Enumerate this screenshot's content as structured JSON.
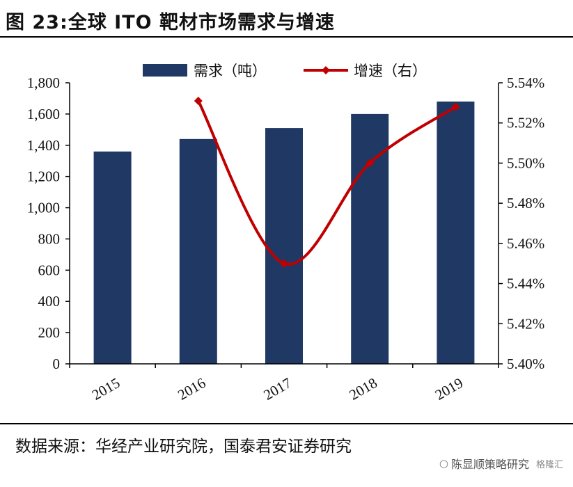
{
  "title": "图 23:全球 ITO 靶材市场需求与增速",
  "source": "数据来源：华经产业研究院，国泰君安证券研究",
  "watermark": {
    "text": "陈显顺策略研究",
    "brand": "格隆汇"
  },
  "chart_data": {
    "type": "bar",
    "categories": [
      "2015",
      "2016",
      "2017",
      "2018",
      "2019"
    ],
    "series": [
      {
        "name": "需求（吨）",
        "type": "bar",
        "axis": "left",
        "color": "#1f3864",
        "values": [
          1360,
          1440,
          1510,
          1600,
          1680
        ]
      },
      {
        "name": "增速（右）",
        "type": "line",
        "axis": "right",
        "color": "#c00000",
        "values": [
          null,
          5.531,
          5.45,
          5.5,
          5.528
        ]
      }
    ],
    "left_axis": {
      "ylim": [
        0,
        1800
      ],
      "ticks": [
        "0",
        "200",
        "400",
        "600",
        "800",
        "1,000",
        "1,200",
        "1,400",
        "1,600",
        "1,800"
      ]
    },
    "right_axis": {
      "ylim": [
        5.4,
        5.54
      ],
      "ticks": [
        "5.40%",
        "5.42%",
        "5.44%",
        "5.46%",
        "5.48%",
        "5.50%",
        "5.52%",
        "5.54%"
      ]
    },
    "legend": "top-center",
    "grid": false
  }
}
